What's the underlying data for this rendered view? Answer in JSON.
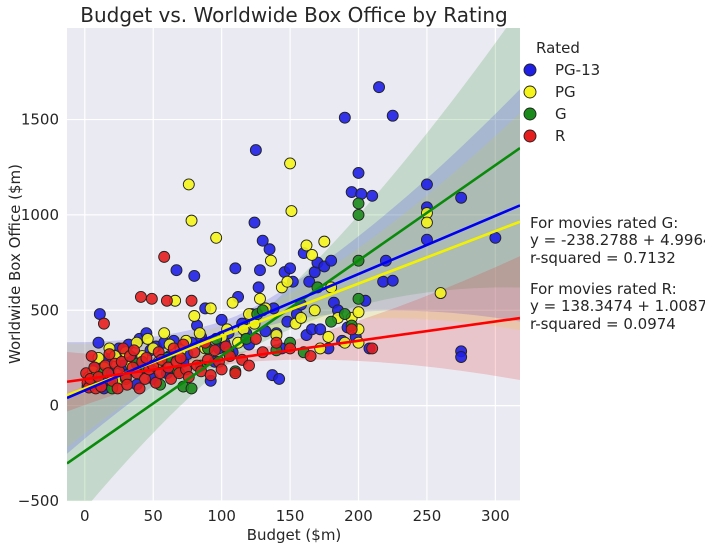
{
  "chart_data": {
    "type": "scatter",
    "title": "Budget vs. Worldwide Box Office by Rating",
    "xlabel": "Budget ($m)",
    "ylabel": "Worldwide Box Office ($m)",
    "xlim": [
      -13,
      318
    ],
    "ylim": [
      -500,
      1980
    ],
    "xticks": [
      0,
      50,
      100,
      150,
      200,
      250,
      300
    ],
    "yticks": [
      -500,
      0,
      500,
      1000,
      1500
    ],
    "xtick_labels": [
      "0",
      "50",
      "100",
      "150",
      "200",
      "250",
      "300"
    ],
    "ytick_labels": [
      "−500",
      "0",
      "500",
      "1000",
      "1500"
    ],
    "grid": true,
    "legend": {
      "title": "Rated",
      "placement": "outside-right-top"
    },
    "series": [
      {
        "name": "PG-13",
        "color": "#1f1fe6",
        "fit": {
          "intercept": 80,
          "slope": 3.05,
          "band": 150
        },
        "points": [
          [
            2,
            100
          ],
          [
            5,
            120
          ],
          [
            8,
            200
          ],
          [
            10,
            330
          ],
          [
            11,
            480
          ],
          [
            12,
            150
          ],
          [
            14,
            90
          ],
          [
            16,
            230
          ],
          [
            18,
            180
          ],
          [
            20,
            270
          ],
          [
            22,
            130
          ],
          [
            25,
            300
          ],
          [
            28,
            210
          ],
          [
            30,
            160
          ],
          [
            32,
            320
          ],
          [
            35,
            250
          ],
          [
            38,
            110
          ],
          [
            40,
            350
          ],
          [
            42,
            200
          ],
          [
            45,
            380
          ],
          [
            48,
            290
          ],
          [
            50,
            140
          ],
          [
            52,
            310
          ],
          [
            55,
            220
          ],
          [
            58,
            330
          ],
          [
            60,
            170
          ],
          [
            62,
            260
          ],
          [
            65,
            340
          ],
          [
            67,
            710
          ],
          [
            70,
            300
          ],
          [
            72,
            230
          ],
          [
            75,
            270
          ],
          [
            78,
            330
          ],
          [
            80,
            680
          ],
          [
            82,
            420
          ],
          [
            85,
            360
          ],
          [
            88,
            510
          ],
          [
            90,
            300
          ],
          [
            92,
            130
          ],
          [
            95,
            230
          ],
          [
            98,
            300
          ],
          [
            100,
            450
          ],
          [
            102,
            330
          ],
          [
            105,
            380
          ],
          [
            108,
            280
          ],
          [
            110,
            720
          ],
          [
            112,
            570
          ],
          [
            115,
            430
          ],
          [
            118,
            380
          ],
          [
            120,
            320
          ],
          [
            122,
            480
          ],
          [
            124,
            960
          ],
          [
            125,
            1340
          ],
          [
            127,
            620
          ],
          [
            128,
            710
          ],
          [
            130,
            865
          ],
          [
            132,
            390
          ],
          [
            135,
            820
          ],
          [
            137,
            160
          ],
          [
            138,
            510
          ],
          [
            140,
            380
          ],
          [
            142,
            140
          ],
          [
            144,
            300
          ],
          [
            146,
            700
          ],
          [
            148,
            440
          ],
          [
            150,
            720
          ],
          [
            152,
            650
          ],
          [
            155,
            480
          ],
          [
            158,
            530
          ],
          [
            160,
            800
          ],
          [
            162,
            370
          ],
          [
            164,
            650
          ],
          [
            166,
            400
          ],
          [
            168,
            700
          ],
          [
            170,
            750
          ],
          [
            172,
            400
          ],
          [
            175,
            730
          ],
          [
            178,
            300
          ],
          [
            180,
            760
          ],
          [
            182,
            540
          ],
          [
            185,
            500
          ],
          [
            188,
            340
          ],
          [
            190,
            1510
          ],
          [
            192,
            410
          ],
          [
            195,
            1120
          ],
          [
            198,
            360
          ],
          [
            200,
            1220
          ],
          [
            202,
            1110
          ],
          [
            205,
            550
          ],
          [
            208,
            300
          ],
          [
            210,
            1100
          ],
          [
            215,
            1670
          ],
          [
            218,
            650
          ],
          [
            220,
            760
          ],
          [
            225,
            1520
          ],
          [
            225,
            655
          ],
          [
            250,
            1160
          ],
          [
            250,
            1040
          ],
          [
            250,
            870
          ],
          [
            275,
            1090
          ],
          [
            275,
            285
          ],
          [
            275,
            255
          ],
          [
            300,
            880
          ]
        ]
      },
      {
        "name": "PG",
        "color": "#f5f51c",
        "fit": {
          "intercept": 90,
          "slope": 2.75,
          "band": 140
        },
        "points": [
          [
            3,
            150
          ],
          [
            6,
            180
          ],
          [
            10,
            250
          ],
          [
            14,
            200
          ],
          [
            18,
            300
          ],
          [
            22,
            260
          ],
          [
            26,
            140
          ],
          [
            30,
            280
          ],
          [
            34,
            210
          ],
          [
            38,
            330
          ],
          [
            42,
            260
          ],
          [
            46,
            350
          ],
          [
            50,
            300
          ],
          [
            54,
            230
          ],
          [
            58,
            380
          ],
          [
            62,
            320
          ],
          [
            66,
            550
          ],
          [
            70,
            290
          ],
          [
            74,
            340
          ],
          [
            76,
            1160
          ],
          [
            78,
            970
          ],
          [
            80,
            470
          ],
          [
            84,
            380
          ],
          [
            88,
            300
          ],
          [
            92,
            510
          ],
          [
            96,
            880
          ],
          [
            100,
            360
          ],
          [
            104,
            400
          ],
          [
            108,
            540
          ],
          [
            112,
            330
          ],
          [
            116,
            400
          ],
          [
            120,
            480
          ],
          [
            124,
            430
          ],
          [
            128,
            560
          ],
          [
            132,
            510
          ],
          [
            136,
            760
          ],
          [
            140,
            370
          ],
          [
            144,
            620
          ],
          [
            148,
            650
          ],
          [
            150,
            1270
          ],
          [
            151,
            1020
          ],
          [
            154,
            430
          ],
          [
            158,
            460
          ],
          [
            162,
            840
          ],
          [
            166,
            790
          ],
          [
            168,
            500
          ],
          [
            172,
            300
          ],
          [
            175,
            860
          ],
          [
            178,
            360
          ],
          [
            180,
            620
          ],
          [
            185,
            460
          ],
          [
            190,
            330
          ],
          [
            195,
            460
          ],
          [
            200,
            490
          ],
          [
            200,
            330
          ],
          [
            200,
            400
          ],
          [
            250,
            1010
          ],
          [
            250,
            960
          ],
          [
            260,
            590
          ]
        ]
      },
      {
        "name": "G",
        "color": "#1a8a1a",
        "fit": {
          "intercept": -238.2788,
          "slope": 4.9964,
          "band": 180
        },
        "points": [
          [
            5,
            110
          ],
          [
            12,
            170
          ],
          [
            20,
            90
          ],
          [
            30,
            140
          ],
          [
            38,
            220
          ],
          [
            45,
            200
          ],
          [
            55,
            110
          ],
          [
            60,
            250
          ],
          [
            68,
            180
          ],
          [
            72,
            100
          ],
          [
            78,
            90
          ],
          [
            85,
            210
          ],
          [
            90,
            300
          ],
          [
            96,
            350
          ],
          [
            105,
            280
          ],
          [
            110,
            180
          ],
          [
            118,
            350
          ],
          [
            126,
            480
          ],
          [
            130,
            500
          ],
          [
            140,
            290
          ],
          [
            150,
            330
          ],
          [
            160,
            280
          ],
          [
            170,
            620
          ],
          [
            180,
            440
          ],
          [
            190,
            480
          ],
          [
            195,
            420
          ],
          [
            200,
            560
          ],
          [
            200,
            760
          ],
          [
            200,
            1060
          ],
          [
            200,
            1000
          ]
        ]
      },
      {
        "name": "R",
        "color": "#e61e1e",
        "fit": {
          "intercept": 138.3474,
          "slope": 1.0087,
          "band": 80
        },
        "points": [
          [
            1,
            170
          ],
          [
            2,
            120
          ],
          [
            3,
            95
          ],
          [
            4,
            140
          ],
          [
            5,
            260
          ],
          [
            7,
            200
          ],
          [
            8,
            90
          ],
          [
            10,
            150
          ],
          [
            12,
            100
          ],
          [
            14,
            430
          ],
          [
            15,
            210
          ],
          [
            17,
            170
          ],
          [
            18,
            270
          ],
          [
            20,
            130
          ],
          [
            22,
            220
          ],
          [
            24,
            90
          ],
          [
            25,
            180
          ],
          [
            27,
            230
          ],
          [
            28,
            300
          ],
          [
            30,
            150
          ],
          [
            31,
            110
          ],
          [
            33,
            260
          ],
          [
            35,
            200
          ],
          [
            36,
            290
          ],
          [
            38,
            170
          ],
          [
            40,
            90
          ],
          [
            41,
            570
          ],
          [
            42,
            230
          ],
          [
            44,
            140
          ],
          [
            45,
            250
          ],
          [
            47,
            190
          ],
          [
            49,
            560
          ],
          [
            50,
            210
          ],
          [
            52,
            120
          ],
          [
            54,
            280
          ],
          [
            55,
            170
          ],
          [
            56,
            240
          ],
          [
            58,
            780
          ],
          [
            60,
            550
          ],
          [
            61,
            200
          ],
          [
            63,
            140
          ],
          [
            65,
            300
          ],
          [
            67,
            230
          ],
          [
            69,
            170
          ],
          [
            70,
            250
          ],
          [
            72,
            320
          ],
          [
            74,
            190
          ],
          [
            76,
            150
          ],
          [
            78,
            550
          ],
          [
            80,
            280
          ],
          [
            82,
            210
          ],
          [
            85,
            180
          ],
          [
            88,
            330
          ],
          [
            90,
            240
          ],
          [
            92,
            160
          ],
          [
            95,
            290
          ],
          [
            98,
            230
          ],
          [
            100,
            190
          ],
          [
            103,
            310
          ],
          [
            106,
            260
          ],
          [
            110,
            170
          ],
          [
            115,
            240
          ],
          [
            120,
            210
          ],
          [
            125,
            350
          ],
          [
            130,
            280
          ],
          [
            140,
            330
          ],
          [
            150,
            300
          ],
          [
            165,
            260
          ],
          [
            195,
            400
          ],
          [
            210,
            300
          ]
        ]
      }
    ],
    "annotations": [
      "For movies rated G:",
      "y = -238.2788 + 4.9964*x",
      "r-squared = 0.7132",
      "For movies rated R:",
      "y = 138.3474 + 1.0087*x",
      "r-squared = 0.0974"
    ]
  }
}
